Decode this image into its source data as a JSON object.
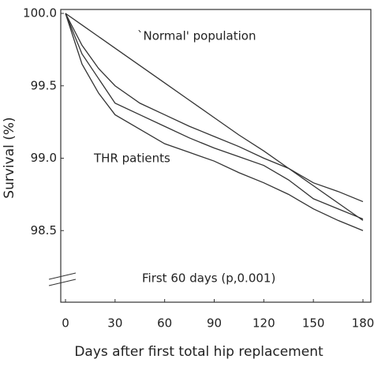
{
  "chart_data": {
    "type": "line",
    "y_label": "Survival (%)",
    "x_label": "Days after first total hip replacement",
    "annotations": [
      "`Normal' population",
      "THR patients",
      "First 60 days (p,0.001)"
    ],
    "x": [
      0,
      10,
      20,
      30,
      45,
      60,
      75,
      90,
      105,
      120,
      135,
      150,
      165,
      180
    ],
    "series": [
      {
        "color": "#333333",
        "values": [
          100.0,
          99.92,
          99.84,
          99.76,
          99.64,
          99.52,
          99.4,
          99.28,
          99.16,
          99.05,
          98.93,
          98.81,
          98.69,
          98.57
        ]
      },
      {
        "color": "#333333",
        "values": [
          100.0,
          99.78,
          99.62,
          99.5,
          99.38,
          99.3,
          99.22,
          99.15,
          99.08,
          99.0,
          98.93,
          98.83,
          98.77,
          98.7
        ]
      },
      {
        "color": "#333333",
        "values": [
          100.0,
          99.72,
          99.55,
          99.38,
          99.3,
          99.22,
          99.14,
          99.07,
          99.01,
          98.95,
          98.85,
          98.72,
          98.65,
          98.58
        ]
      },
      {
        "color": "#333333",
        "values": [
          100.0,
          99.65,
          99.45,
          99.3,
          99.2,
          99.1,
          99.04,
          98.98,
          98.9,
          98.83,
          98.75,
          98.65,
          98.57,
          98.5
        ]
      }
    ],
    "xlim": [
      0,
      180
    ],
    "ylim": [
      98.0,
      100.0
    ],
    "xticks": [
      0,
      30,
      60,
      90,
      120,
      150,
      180
    ],
    "yticks": [
      98.5,
      {
        "value": 99.0,
        "label": "99.0"
      },
      99.5,
      {
        "value": 100.0,
        "label": "100.0"
      }
    ]
  }
}
